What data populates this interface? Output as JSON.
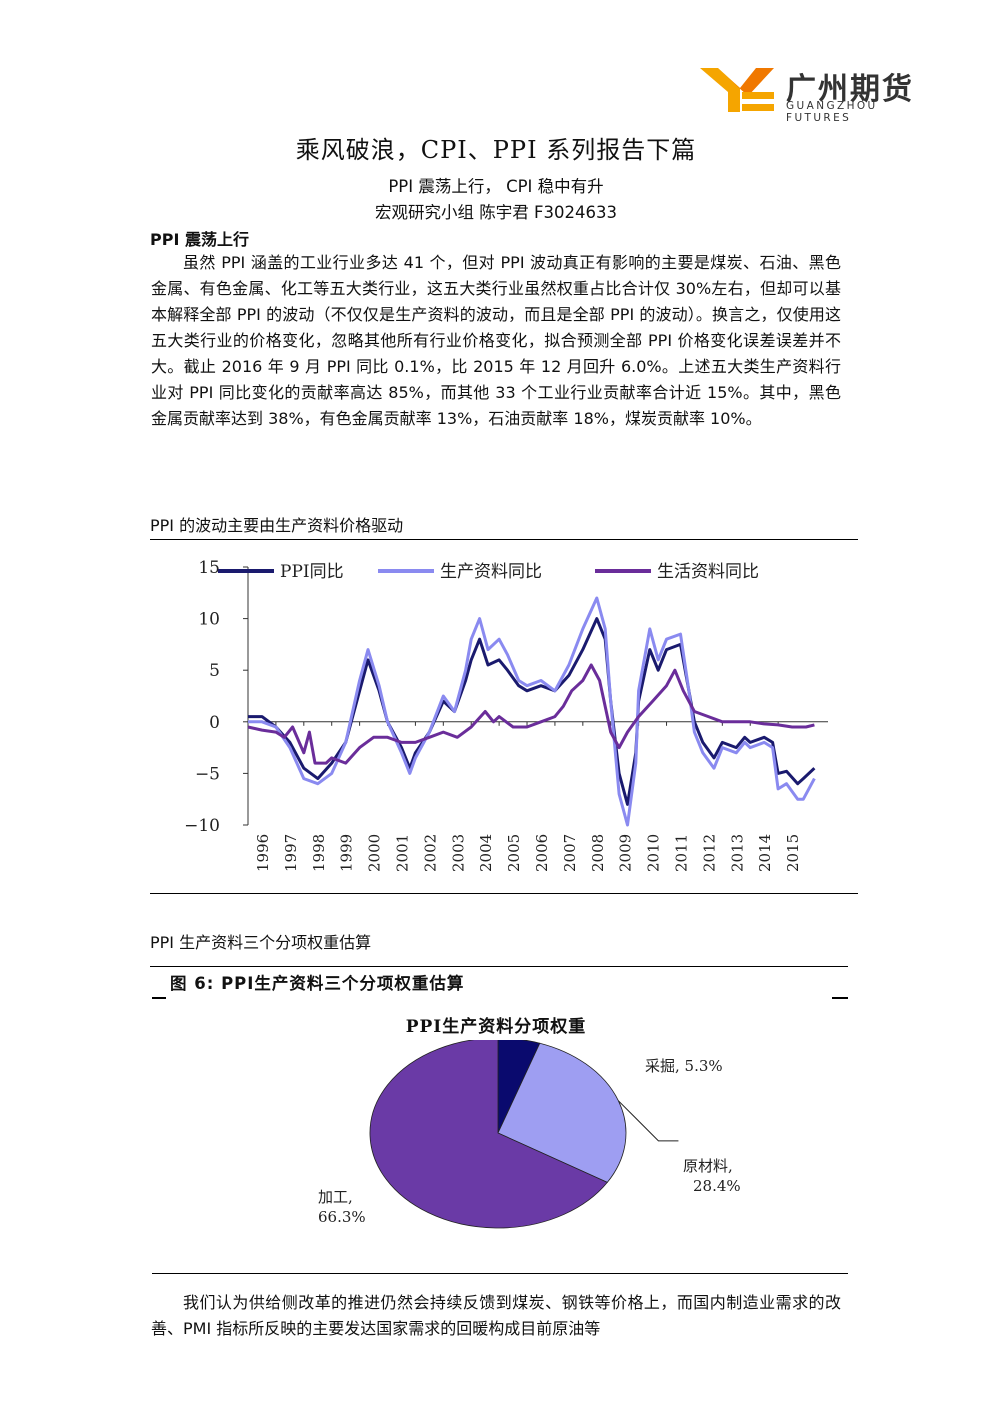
{
  "brand": {
    "name_cn": "广州期货",
    "name_en": "GUANGZHOU FUTURES"
  },
  "doc": {
    "title": "乘风破浪，CPI、PPI 系列报告下篇",
    "subtitle1": "PPI 震荡上行，  CPI 稳中有升",
    "subtitle2": "宏观研究小组    陈宇君 F3024633",
    "section_heading": "PPI 震荡上行",
    "paragraph1": "虽然 PPI 涵盖的工业行业多达 41 个，但对 PPI 波动真正有影响的主要是煤炭、石油、黑色金属、有色金属、化工等五大类行业，这五大类行业虽然权重占比合计仅 30%左右，但却可以基本解释全部 PPI 的波动（不仅仅是生产资料的波动，而且是全部 PPI 的波动）。换言之，仅使用这五大类行业的价格变化，忽略其他所有行业价格变化，拟合预测全部 PPI 价格变化误差误差并不大。截止 2016 年 9 月 PPI 同比 0.1%，比 2015 年 12 月回升 6.0%。上述五大类生产资料行业对 PPI 同比变化的贡献率高达 85%，而其他 33 个工业行业贡献率合计近 15%。其中，黑色金属贡献率达到 38%，有色金属贡献率 13%，石油贡献率 18%，煤炭贡献率 10%。",
    "caption1": "PPI 的波动主要由生产资料价格驱动",
    "caption2": "PPI 生产资料三个分项权重估算",
    "figure6_title": "图 6:   PPI生产资料三个分项权重估算",
    "paragraph2": "我们认为供给侧改革的推进仍然会持续反馈到煤炭、钢铁等价格上，而国内制造业需求的改善、PMI 指标所反映的主要发达国家需求的回暖构成目前原油等"
  },
  "chart_data": [
    {
      "type": "line",
      "ylim": [
        -10,
        15
      ],
      "yticks": [
        "15",
        "10",
        "5",
        "0",
        "−5",
        "−10"
      ],
      "x": [
        "1996",
        "1997",
        "1998",
        "1999",
        "2000",
        "2001",
        "2002",
        "2003",
        "2004",
        "2005",
        "2006",
        "2007",
        "2008",
        "2009",
        "2010",
        "2011",
        "2012",
        "2013",
        "2014",
        "2015"
      ],
      "grid": false,
      "legend": "top",
      "series": [
        {
          "name": "PPI同比",
          "color": "#1a1a6e",
          "points": [
            [
              1996,
              0.5
            ],
            [
              1996.5,
              0.5
            ],
            [
              1997,
              -0.5
            ],
            [
              1997.5,
              -2
            ],
            [
              1998,
              -4.5
            ],
            [
              1998.5,
              -5.5
            ],
            [
              1999,
              -4
            ],
            [
              1999.5,
              -2
            ],
            [
              2000,
              3
            ],
            [
              2000.3,
              6
            ],
            [
              2000.7,
              3
            ],
            [
              2001,
              0
            ],
            [
              2001.5,
              -2.5
            ],
            [
              2001.8,
              -4.5
            ],
            [
              2002,
              -3
            ],
            [
              2002.5,
              -1
            ],
            [
              2003,
              2
            ],
            [
              2003.4,
              1
            ],
            [
              2003.8,
              4
            ],
            [
              2004,
              6
            ],
            [
              2004.3,
              8
            ],
            [
              2004.6,
              5.5
            ],
            [
              2005,
              6
            ],
            [
              2005.3,
              5
            ],
            [
              2005.7,
              3.5
            ],
            [
              2006,
              3
            ],
            [
              2006.5,
              3.5
            ],
            [
              2007,
              3
            ],
            [
              2007.5,
              4.5
            ],
            [
              2008,
              7
            ],
            [
              2008.5,
              10
            ],
            [
              2008.8,
              8
            ],
            [
              2009,
              2
            ],
            [
              2009.3,
              -5
            ],
            [
              2009.6,
              -8
            ],
            [
              2009.9,
              -3
            ],
            [
              2010,
              2
            ],
            [
              2010.4,
              7
            ],
            [
              2010.7,
              5
            ],
            [
              2011,
              7
            ],
            [
              2011.5,
              7.5
            ],
            [
              2011.8,
              3
            ],
            [
              2012,
              0
            ],
            [
              2012.3,
              -2
            ],
            [
              2012.7,
              -3.5
            ],
            [
              2013,
              -2
            ],
            [
              2013.5,
              -2.5
            ],
            [
              2013.8,
              -1.5
            ],
            [
              2014,
              -2
            ],
            [
              2014.5,
              -1.5
            ],
            [
              2014.8,
              -2
            ],
            [
              2015,
              -5
            ],
            [
              2015.3,
              -4.8
            ],
            [
              2015.7,
              -6
            ],
            [
              2015.9,
              -5.5
            ],
            [
              2016.3,
              -4.5
            ]
          ]
        },
        {
          "name": "生产资料同比",
          "color": "#8a8af0",
          "points": [
            [
              1996,
              0
            ],
            [
              1996.5,
              0
            ],
            [
              1997,
              -0.5
            ],
            [
              1997.5,
              -2.5
            ],
            [
              1998,
              -5.5
            ],
            [
              1998.5,
              -6
            ],
            [
              1999,
              -5
            ],
            [
              1999.5,
              -2
            ],
            [
              2000,
              4
            ],
            [
              2000.3,
              7
            ],
            [
              2000.7,
              3.5
            ],
            [
              2001,
              0
            ],
            [
              2001.5,
              -3
            ],
            [
              2001.8,
              -5
            ],
            [
              2002,
              -3.5
            ],
            [
              2002.5,
              -1
            ],
            [
              2003,
              2.5
            ],
            [
              2003.4,
              1
            ],
            [
              2003.8,
              5
            ],
            [
              2004,
              8
            ],
            [
              2004.3,
              10
            ],
            [
              2004.6,
              7
            ],
            [
              2005,
              8
            ],
            [
              2005.3,
              6.5
            ],
            [
              2005.7,
              4
            ],
            [
              2006,
              3.5
            ],
            [
              2006.5,
              4
            ],
            [
              2007,
              3
            ],
            [
              2007.5,
              5.5
            ],
            [
              2008,
              9
            ],
            [
              2008.5,
              12
            ],
            [
              2008.8,
              9
            ],
            [
              2009,
              2
            ],
            [
              2009.3,
              -7
            ],
            [
              2009.6,
              -10
            ],
            [
              2009.9,
              -4
            ],
            [
              2010,
              3
            ],
            [
              2010.4,
              9
            ],
            [
              2010.7,
              6
            ],
            [
              2011,
              8
            ],
            [
              2011.5,
              8.5
            ],
            [
              2011.8,
              3
            ],
            [
              2012,
              -1
            ],
            [
              2012.3,
              -3
            ],
            [
              2012.7,
              -4.5
            ],
            [
              2013,
              -2.5
            ],
            [
              2013.5,
              -3
            ],
            [
              2013.8,
              -2
            ],
            [
              2014,
              -2.5
            ],
            [
              2014.5,
              -2
            ],
            [
              2014.8,
              -2.5
            ],
            [
              2015,
              -6.5
            ],
            [
              2015.3,
              -6
            ],
            [
              2015.7,
              -7.5
            ],
            [
              2015.9,
              -7.5
            ],
            [
              2016.3,
              -5.5
            ]
          ]
        },
        {
          "name": "生活资料同比",
          "color": "#6a2d9a",
          "points": [
            [
              1996,
              -0.5
            ],
            [
              1996.5,
              -0.8
            ],
            [
              1997,
              -1
            ],
            [
              1997.3,
              -1.5
            ],
            [
              1997.6,
              -0.5
            ],
            [
              1998,
              -3
            ],
            [
              1998.2,
              -1
            ],
            [
              1998.4,
              -4
            ],
            [
              1998.8,
              -4
            ],
            [
              1999,
              -3.5
            ],
            [
              1999.5,
              -4
            ],
            [
              2000,
              -2.5
            ],
            [
              2000.5,
              -1.5
            ],
            [
              2001,
              -1.5
            ],
            [
              2001.5,
              -2
            ],
            [
              2002,
              -2
            ],
            [
              2002.5,
              -1.5
            ],
            [
              2003,
              -1
            ],
            [
              2003.5,
              -1.5
            ],
            [
              2004,
              -0.5
            ],
            [
              2004.5,
              1
            ],
            [
              2004.8,
              0
            ],
            [
              2005,
              0.5
            ],
            [
              2005.5,
              -0.5
            ],
            [
              2006,
              -0.5
            ],
            [
              2006.5,
              0
            ],
            [
              2007,
              0.5
            ],
            [
              2007.3,
              1.5
            ],
            [
              2007.6,
              3
            ],
            [
              2008,
              4
            ],
            [
              2008.3,
              5.5
            ],
            [
              2008.6,
              4
            ],
            [
              2009,
              -1
            ],
            [
              2009.3,
              -2.5
            ],
            [
              2009.6,
              -1
            ],
            [
              2010,
              0.5
            ],
            [
              2010.5,
              2
            ],
            [
              2011,
              3.5
            ],
            [
              2011.3,
              5
            ],
            [
              2011.6,
              3
            ],
            [
              2012,
              1
            ],
            [
              2012.5,
              0.5
            ],
            [
              2013,
              0
            ],
            [
              2013.5,
              0
            ],
            [
              2014,
              0
            ],
            [
              2014.5,
              -0.2
            ],
            [
              2015,
              -0.3
            ],
            [
              2015.5,
              -0.5
            ],
            [
              2016,
              -0.5
            ],
            [
              2016.3,
              -0.3
            ]
          ]
        }
      ]
    },
    {
      "type": "pie",
      "title": "PPI生产资料分项权重",
      "slices": [
        {
          "label": "采掘",
          "value": 5.3,
          "display": "采掘,  5.3%",
          "color": "#0a0a6e"
        },
        {
          "label": "原材料",
          "value": 28.4,
          "display_line1": "原材料,",
          "display_line2": "28.4%",
          "color": "#9e9ef2"
        },
        {
          "label": "加工",
          "value": 66.3,
          "display_line1": "加工,",
          "display_line2": "66.3%",
          "color": "#6a3aa6"
        }
      ]
    }
  ]
}
